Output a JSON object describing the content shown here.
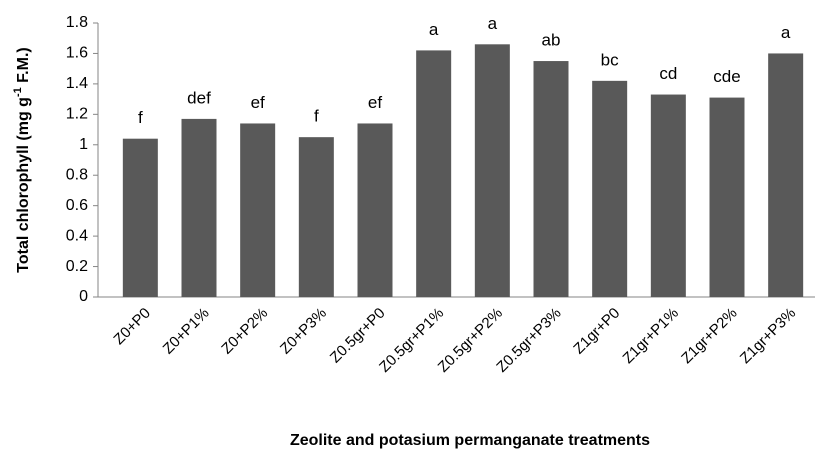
{
  "chart_data": {
    "type": "bar",
    "ylabel": [
      "Total chlorophyll (mg g",
      "-1",
      " F.M.)"
    ],
    "xlabel": "Zeolite and potasium permanganate treatments",
    "categories": [
      "Z0+P0",
      "Z0+P1%",
      "Z0+P2%",
      "Z0+P3%",
      "Z0.5gr+P0",
      "Z0.5gr+P1%",
      "Z0.5gr+P2%",
      "Z0.5gr+P3%",
      "Z1gr+P0",
      "Z1gr+P1%",
      "Z1gr+P2%",
      "Z1gr+P3%"
    ],
    "values": [
      1.04,
      1.17,
      1.14,
      1.05,
      1.14,
      1.62,
      1.66,
      1.55,
      1.42,
      1.33,
      1.31,
      1.6
    ],
    "annotations": [
      "f",
      "def",
      "ef",
      "f",
      "ef",
      "a",
      "a",
      "ab",
      "bc",
      "cd",
      "cde",
      "a"
    ],
    "color": "#595959",
    "ylim": [
      0,
      1.8
    ],
    "yticks": [
      0,
      0.2,
      0.4,
      0.6,
      0.8,
      1,
      1.2,
      1.4,
      1.6,
      1.8
    ],
    "grid": false
  }
}
